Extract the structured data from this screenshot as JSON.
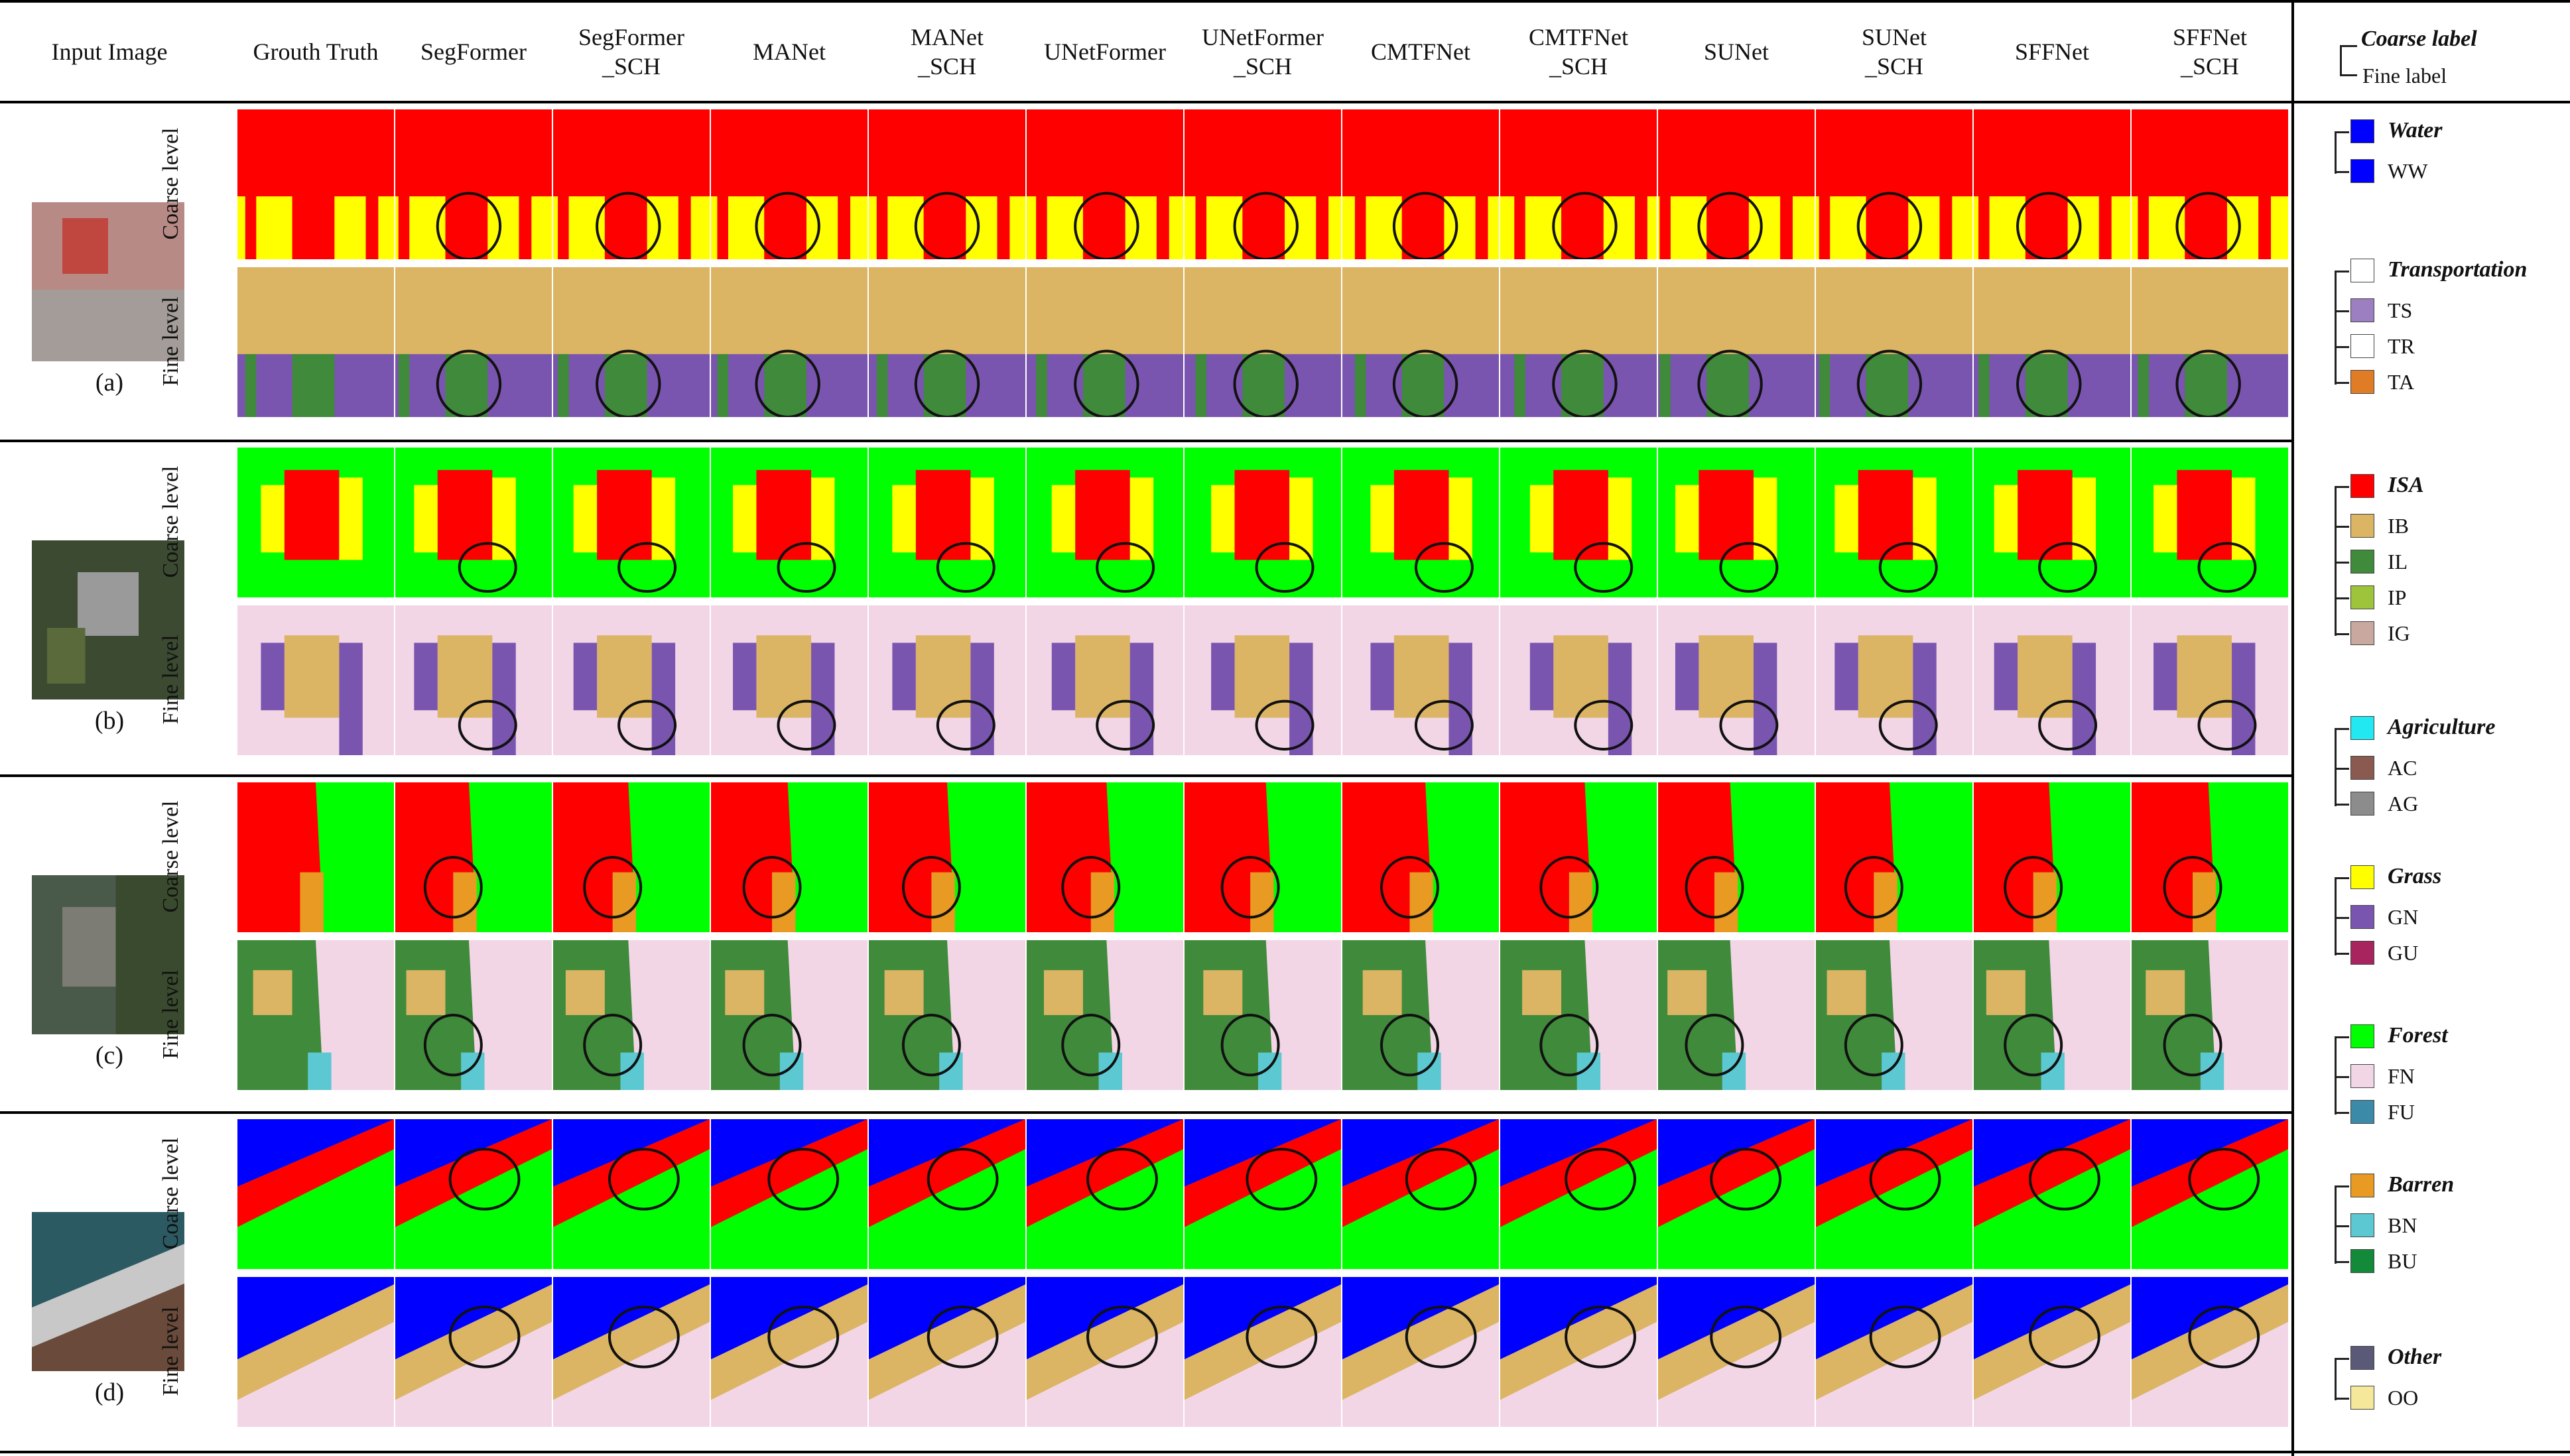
{
  "header": {
    "input_image": "Input Image",
    "columns": [
      "Grouth Truth",
      "SegFormer",
      "SegFormer\n_SCH",
      "MANet",
      "MANet\n_SCH",
      "UNetFormer",
      "UNetFormer\n_SCH",
      "CMTFNet",
      "CMTFNet\n_SCH",
      "SUNet",
      "SUNet\n_SCH",
      "SFFNet",
      "SFFNet\n_SCH"
    ],
    "legend_head_coarse": "Coarse label",
    "legend_head_fine": "Fine label"
  },
  "rows": [
    {
      "label": "(a)",
      "coarse": "Coarse level",
      "fine": "Fine level"
    },
    {
      "label": "(b)",
      "coarse": "Coarse level",
      "fine": "Fine level"
    },
    {
      "label": "(c)",
      "coarse": "Coarse level",
      "fine": "Fine level"
    },
    {
      "label": "(d)",
      "coarse": "Coarse level",
      "fine": "Fine level"
    }
  ],
  "legend": [
    {
      "title": "Water",
      "color": "#0000ff",
      "items": [
        {
          "label": "WW",
          "color": "#0000ff"
        }
      ]
    },
    {
      "title": "Transportation",
      "color": "#ffffff",
      "items": [
        {
          "label": "TS",
          "color": "#9c7fc0"
        },
        {
          "label": "TR",
          "color": "#ffffff"
        },
        {
          "label": "TA",
          "color": "#e07b26"
        }
      ]
    },
    {
      "title": "ISA",
      "color": "#ff0000",
      "items": [
        {
          "label": "IB",
          "color": "#dbb464"
        },
        {
          "label": "IL",
          "color": "#3f8a3b"
        },
        {
          "label": "IP",
          "color": "#9ec43c"
        },
        {
          "label": "IG",
          "color": "#c9a8a0"
        }
      ]
    },
    {
      "title": "Agriculture",
      "color": "#22e8f2",
      "items": [
        {
          "label": "AC",
          "color": "#8a5a50"
        },
        {
          "label": "AG",
          "color": "#8c8c8c"
        }
      ]
    },
    {
      "title": "Grass",
      "color": "#ffff00",
      "items": [
        {
          "label": "GN",
          "color": "#7a55b0"
        },
        {
          "label": "GU",
          "color": "#a8245f"
        }
      ]
    },
    {
      "title": "Forest",
      "color": "#00ff00",
      "items": [
        {
          "label": "FN",
          "color": "#f2d6e6"
        },
        {
          "label": "FU",
          "color": "#3a8aa8"
        }
      ]
    },
    {
      "title": "Barren",
      "color": "#e89a22",
      "items": [
        {
          "label": "BN",
          "color": "#5cc8d2"
        },
        {
          "label": "BU",
          "color": "#128a3a"
        }
      ]
    },
    {
      "title": "Other",
      "color": "#5a5a78",
      "items": [
        {
          "label": "OO",
          "color": "#f5e89a"
        }
      ]
    }
  ],
  "colors": {
    "red": "#ff0000",
    "yellow": "#ffff00",
    "green": "#00ff00",
    "blue": "#0000ff",
    "tan": "#dbb464",
    "purple": "#7a55b0",
    "pink": "#f2d6e6",
    "dkgreen": "#3f8a3b",
    "cyan": "#5cc8d2",
    "orange": "#e89a22",
    "slate": "#5a5a78",
    "pale": "#f5e89a"
  }
}
